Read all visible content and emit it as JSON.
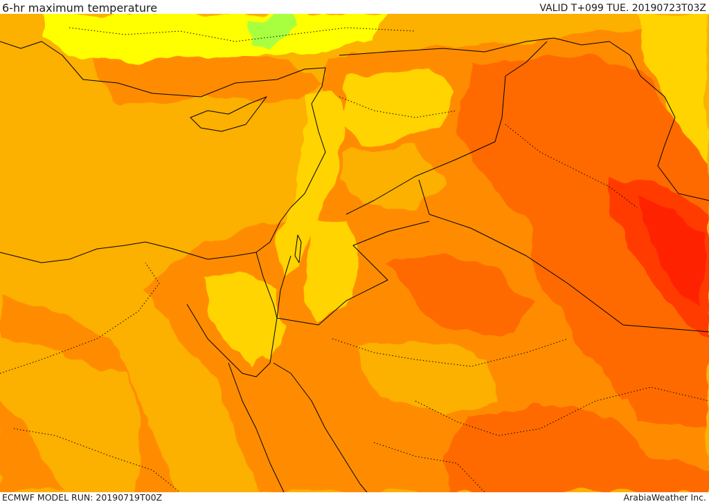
{
  "header": {
    "title": "6-hr maximum temperature",
    "valid": "VALID T+099 TUE. 20190723T03Z"
  },
  "footer": {
    "model_run": "ECMWF MODEL RUN: 20190719T00Z",
    "credit": "ArabiaWeather Inc."
  },
  "map": {
    "colors": {
      "sea": "#fcb000",
      "light_yellow": "#ffff00",
      "yellow": "#ffd400",
      "amber": "#fcb000",
      "orange": "#ff8c00",
      "dark_orange": "#ff6a00",
      "red": "#ff3a00",
      "red_hot": "#ff2000",
      "green": "#a8ff40",
      "border": "#000000"
    }
  }
}
